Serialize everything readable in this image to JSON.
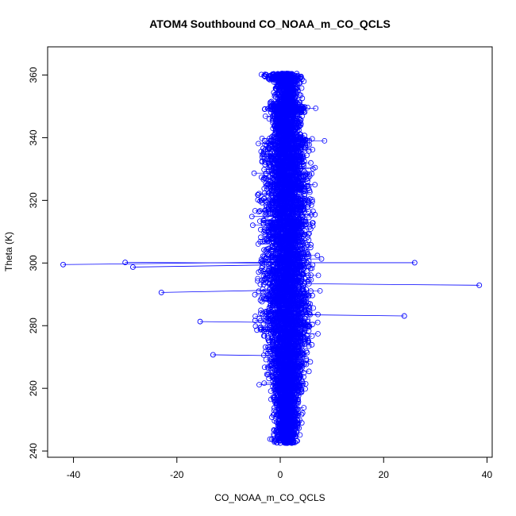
{
  "chart_data": {
    "type": "scatter",
    "title": "ATOM4 Southbound CO_NOAA_m_CO_QCLS",
    "xlabel": "CO_NOAA_m_CO_QCLS",
    "ylabel": "Theta (K)",
    "xlim": [
      -45,
      41
    ],
    "ylim": [
      238,
      369
    ],
    "xticks": [
      -40,
      -20,
      0,
      20,
      40
    ],
    "yticks": [
      240,
      260,
      280,
      300,
      320,
      340,
      360
    ],
    "grid": false,
    "legend": "none",
    "point_style": "open-circle",
    "connected_by_lines": true,
    "color": "#0000ff",
    "n_points": 5400,
    "theta_range": [
      242.5,
      360.5
    ],
    "typical_x_spread": [
      -6,
      11
    ],
    "outliers": [
      {
        "x": -42,
        "y": 299.5
      },
      {
        "x": -30,
        "y": 300.2
      },
      {
        "x": -28.5,
        "y": 298.7
      },
      {
        "x": -23,
        "y": 290.6
      },
      {
        "x": -15.5,
        "y": 281.3
      },
      {
        "x": -13,
        "y": 270.7
      },
      {
        "x": 24,
        "y": 283.1
      },
      {
        "x": 26,
        "y": 300.1
      },
      {
        "x": 38.5,
        "y": 292.9
      }
    ]
  }
}
